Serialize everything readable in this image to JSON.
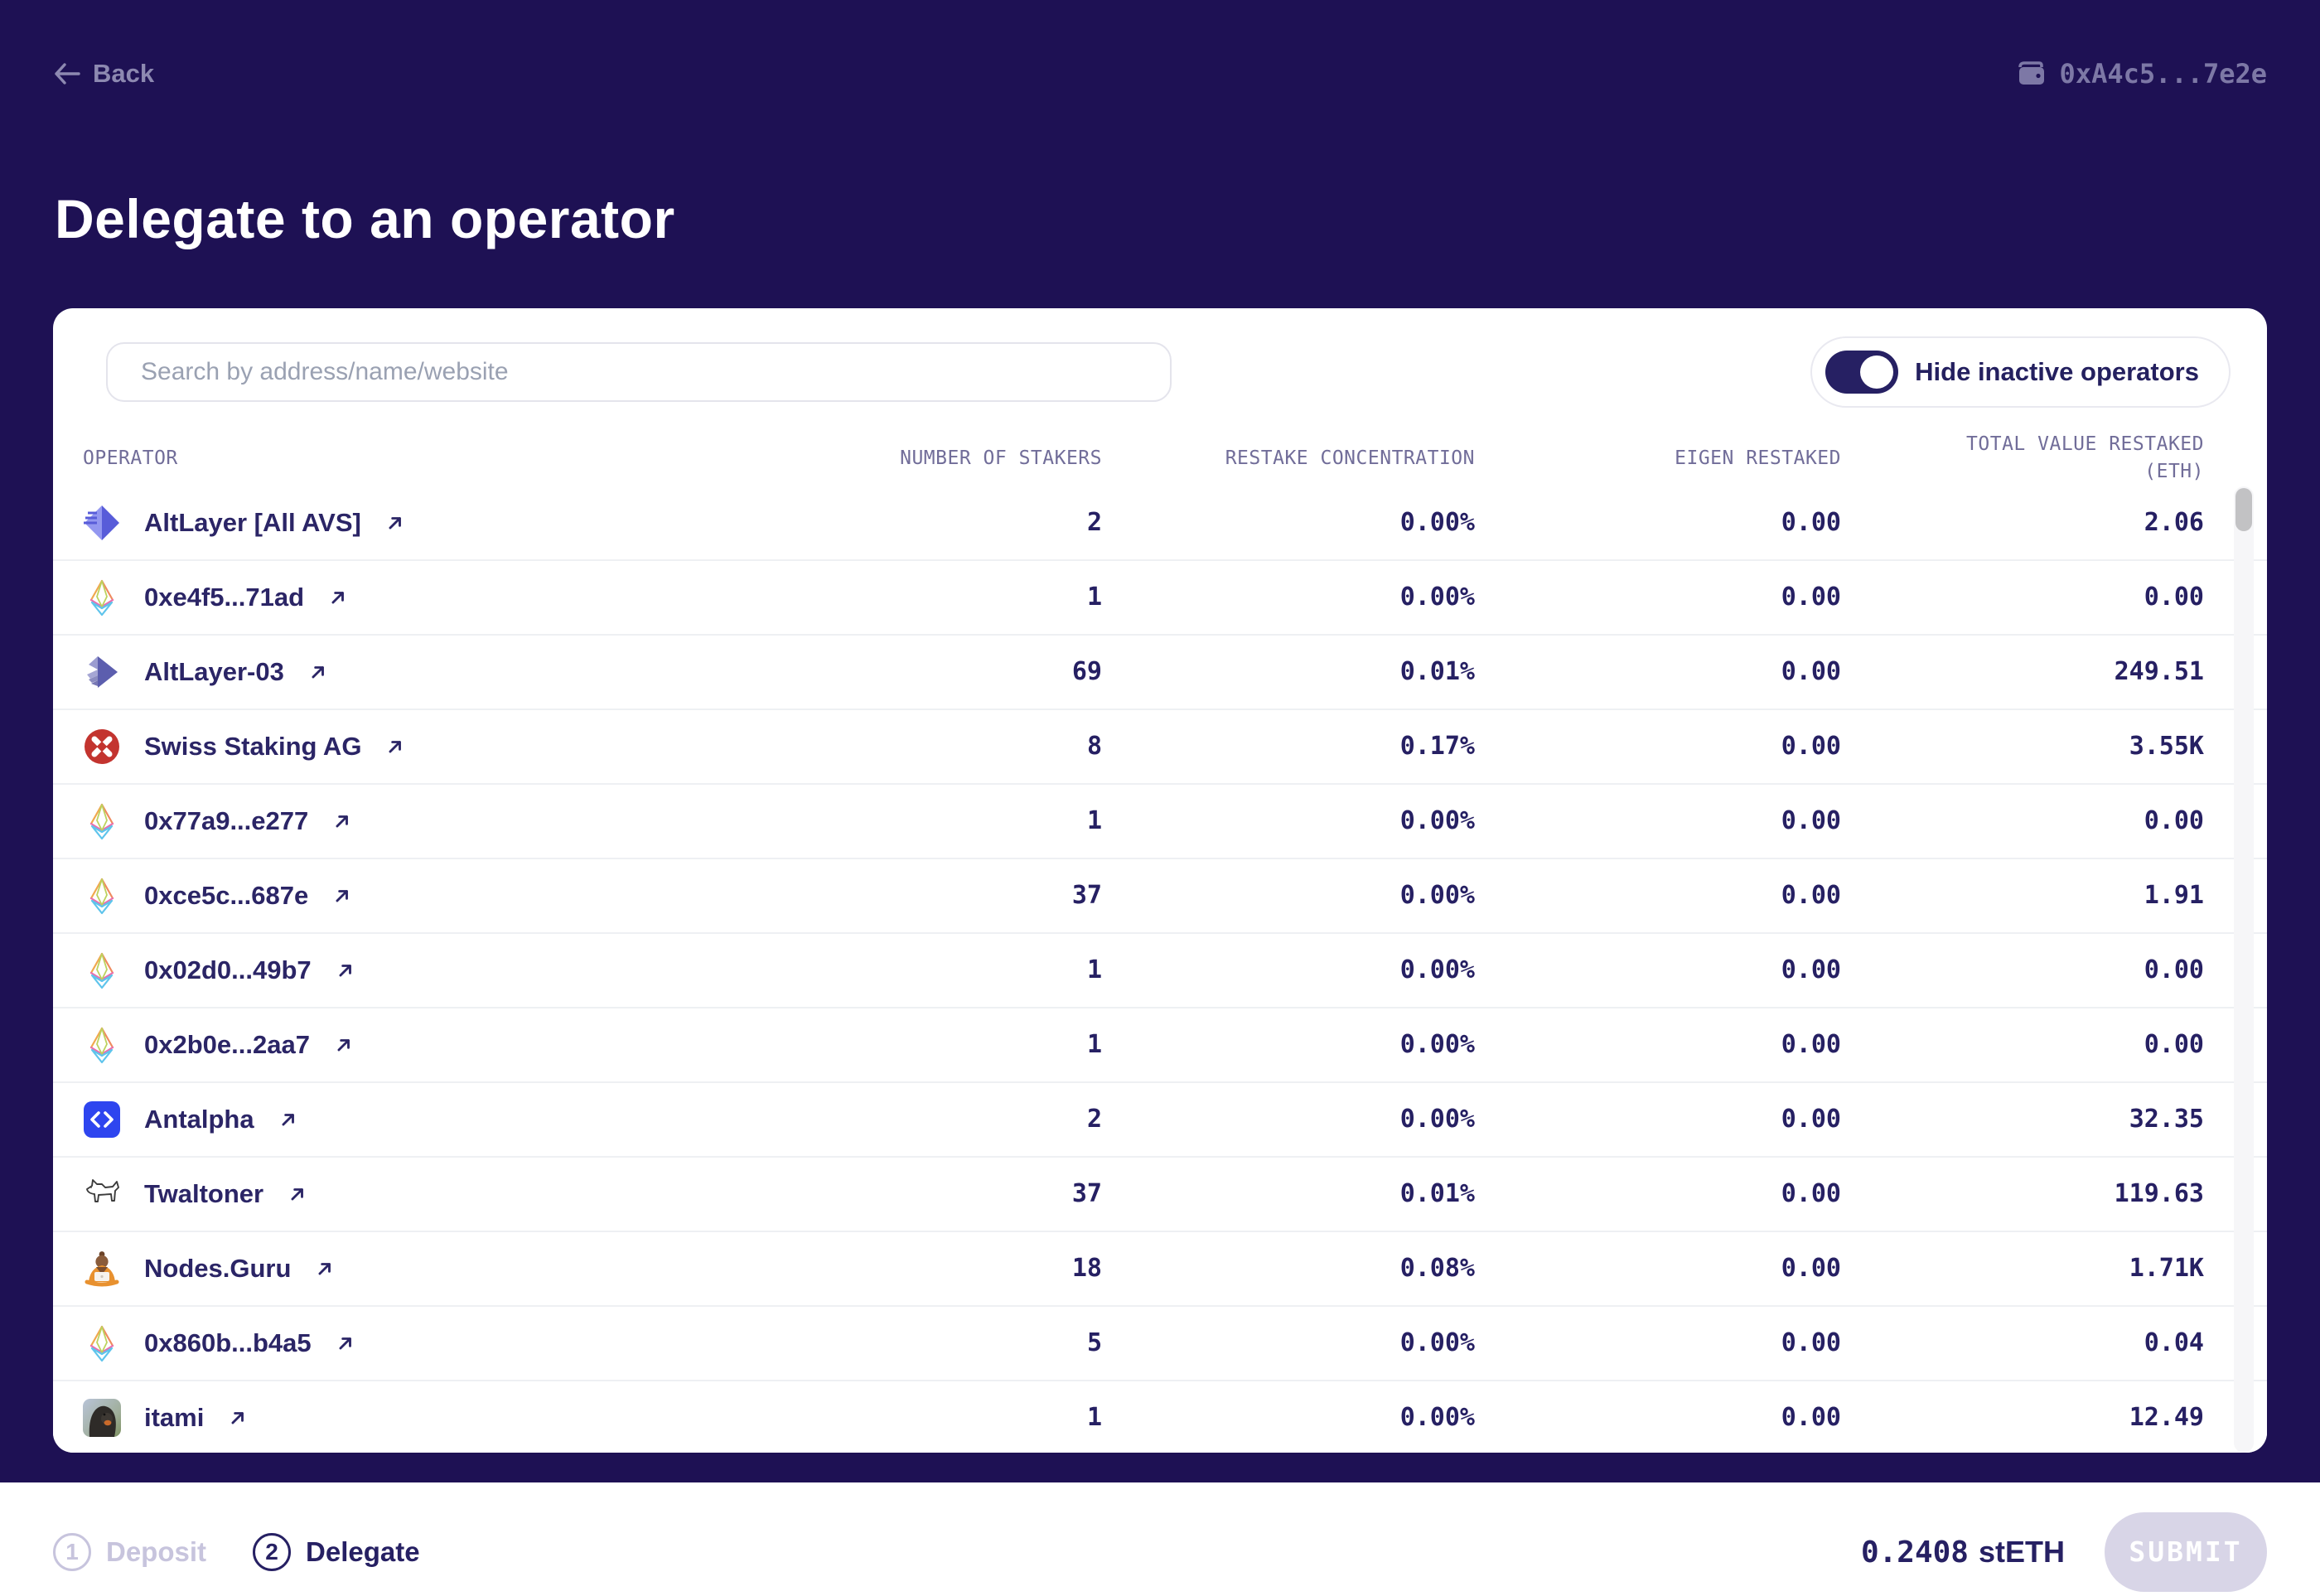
{
  "colors": {
    "background": "#1e1154",
    "card": "#ffffff",
    "navy_text": "#262063",
    "muted_header": "#716d99",
    "toggle_on": "#262063",
    "submit_disabled_bg": "#d8d5e7",
    "swiss_red": "#c3342f",
    "antalpha_blue": "#2e45ef"
  },
  "header": {
    "back_label": "Back",
    "wallet_address": "0xA4c5...7e2e",
    "title": "Delegate to an operator"
  },
  "search": {
    "placeholder": "Search by address/name/website"
  },
  "toggle": {
    "label": "Hide inactive operators",
    "state": "on"
  },
  "table": {
    "columns": {
      "operator": "OPERATOR",
      "stakers": "NUMBER OF STAKERS",
      "concentration": "RESTAKE CONCENTRATION",
      "eigen": "EIGEN RESTAKED",
      "total_line1": "TOTAL VALUE RESTAKED",
      "total_line2": "(ETH)"
    },
    "rows": [
      {
        "name": "AltLayer [All AVS]",
        "icon": "altlayer-icon",
        "stakers": "2",
        "concentration": "0.00%",
        "eigen": "0.00",
        "total": "2.06"
      },
      {
        "name": "0xe4f5...71ad",
        "icon": "eth-diamond-icon",
        "stakers": "1",
        "concentration": "0.00%",
        "eigen": "0.00",
        "total": "0.00"
      },
      {
        "name": "AltLayer-03",
        "icon": "altlayer-layers-icon",
        "stakers": "69",
        "concentration": "0.01%",
        "eigen": "0.00",
        "total": "249.51"
      },
      {
        "name": "Swiss Staking AG",
        "icon": "swiss-staking-icon",
        "stakers": "8",
        "concentration": "0.17%",
        "eigen": "0.00",
        "total": "3.55K"
      },
      {
        "name": "0x77a9...e277",
        "icon": "eth-diamond-icon",
        "stakers": "1",
        "concentration": "0.00%",
        "eigen": "0.00",
        "total": "0.00"
      },
      {
        "name": "0xce5c...687e",
        "icon": "eth-diamond-icon",
        "stakers": "37",
        "concentration": "0.00%",
        "eigen": "0.00",
        "total": "1.91"
      },
      {
        "name": "0x02d0...49b7",
        "icon": "eth-diamond-icon",
        "stakers": "1",
        "concentration": "0.00%",
        "eigen": "0.00",
        "total": "0.00"
      },
      {
        "name": "0x2b0e...2aa7",
        "icon": "eth-diamond-icon",
        "stakers": "1",
        "concentration": "0.00%",
        "eigen": "0.00",
        "total": "0.00"
      },
      {
        "name": "Antalpha",
        "icon": "antalpha-code-icon",
        "stakers": "2",
        "concentration": "0.00%",
        "eigen": "0.00",
        "total": "32.35"
      },
      {
        "name": "Twaltoner",
        "icon": "dog-icon",
        "stakers": "37",
        "concentration": "0.01%",
        "eigen": "0.00",
        "total": "119.63"
      },
      {
        "name": "Nodes.Guru",
        "icon": "guru-icon",
        "stakers": "18",
        "concentration": "0.08%",
        "eigen": "0.00",
        "total": "1.71K"
      },
      {
        "name": "0x860b...b4a5",
        "icon": "eth-diamond-icon",
        "stakers": "5",
        "concentration": "0.00%",
        "eigen": "0.00",
        "total": "0.04"
      },
      {
        "name": "itami",
        "icon": "monkey-avatar",
        "stakers": "1",
        "concentration": "0.00%",
        "eigen": "0.00",
        "total": "12.49"
      }
    ]
  },
  "footer": {
    "steps": [
      {
        "number": "1",
        "label": "Deposit",
        "active": false
      },
      {
        "number": "2",
        "label": "Delegate",
        "active": true
      }
    ],
    "balance_amount": "0.2408",
    "balance_unit": "stETH",
    "submit_label": "SUBMIT"
  }
}
